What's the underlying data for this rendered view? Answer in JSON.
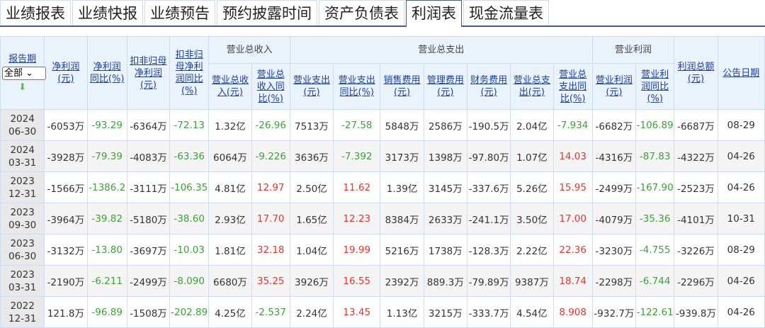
{
  "tabs": [
    "业绩报表",
    "业绩快报",
    "业绩预告",
    "预约披露时间",
    "资产负债表",
    "利润表",
    "现金流量表"
  ],
  "active_tab": "利润表",
  "header": {
    "report_period": "报告期",
    "filter_value": "全部",
    "groups": {
      "revenue": "营业总收入",
      "expense": "营业总支出",
      "op_profit": "营业利润"
    },
    "cols": [
      "净利润(元)",
      "净利润同比(%)",
      "扣非归母净利润(元)",
      "扣非归母净利润同比(%)",
      "营业总收入(元)",
      "营业总收入同比(%)",
      "营业支出(元)",
      "营业支出同比(%)",
      "销售费用(元)",
      "管理费用(元)",
      "财务费用(元)",
      "营业总支出(元)",
      "营业总支出同比(%)",
      "营业利润(元)",
      "营业利润同比(%)",
      "利润总额(元)",
      "公告日期"
    ]
  },
  "colors": {
    "positive": "#f0302a",
    "negative": "#3aa335"
  },
  "rows": [
    {
      "year": "2024",
      "md": "06-30",
      "v": [
        "-6053万",
        "-93.29",
        "-6364万",
        "-72.13",
        "1.32亿",
        "-26.96",
        "7513万",
        "-27.58",
        "5848万",
        "2586万",
        "-190.5万",
        "2.04亿",
        "-7.934",
        "-6682万",
        "-106.89",
        "-6687万",
        "08-29"
      ]
    },
    {
      "year": "2024",
      "md": "03-31",
      "v": [
        "-3928万",
        "-79.39",
        "-4083万",
        "-63.36",
        "6064万",
        "-9.226",
        "3636万",
        "-7.392",
        "3173万",
        "1398万",
        "-97.80万",
        "1.07亿",
        "14.03",
        "-4316万",
        "-87.83",
        "-4322万",
        "04-26"
      ]
    },
    {
      "year": "2023",
      "md": "12-31",
      "v": [
        "-1566万",
        "-1386.2",
        "-3111万",
        "-106.35",
        "4.81亿",
        "12.97",
        "2.50亿",
        "11.62",
        "1.39亿",
        "3145万",
        "-337.6万",
        "5.26亿",
        "15.95",
        "-2499万",
        "-167.90",
        "-2523万",
        "04-26"
      ]
    },
    {
      "year": "2023",
      "md": "09-30",
      "v": [
        "-3964万",
        "-39.82",
        "-5180万",
        "-38.60",
        "2.93亿",
        "17.70",
        "1.65亿",
        "12.23",
        "8384万",
        "2633万",
        "-241.1万",
        "3.50亿",
        "17.00",
        "-4079万",
        "-35.36",
        "-4101万",
        "10-31"
      ]
    },
    {
      "year": "2023",
      "md": "06-30",
      "v": [
        "-3132万",
        "-13.80",
        "-3697万",
        "-10.03",
        "1.81亿",
        "32.18",
        "1.04亿",
        "19.99",
        "5216万",
        "1738万",
        "-128.3万",
        "2.22亿",
        "22.36",
        "-3230万",
        "-4.755",
        "-3226万",
        "08-29"
      ]
    },
    {
      "year": "2023",
      "md": "03-31",
      "v": [
        "-2190万",
        "-6.211",
        "-2499万",
        "-8.090",
        "6680万",
        "35.25",
        "3926万",
        "16.55",
        "2392万",
        "889.3万",
        "-79.89万",
        "9387万",
        "18.74",
        "-2298万",
        "-6.744",
        "-2296万",
        "04-26"
      ]
    },
    {
      "year": "2022",
      "md": "12-31",
      "v": [
        "121.8万",
        "-96.89",
        "-1508万",
        "-202.89",
        "4.25亿",
        "-2.537",
        "2.24亿",
        "13.45",
        "1.13亿",
        "3215万",
        "-333.7万",
        "4.54亿",
        "8.908",
        "-932.7万",
        "-122.61",
        "-939.8万",
        "04-26"
      ]
    }
  ]
}
